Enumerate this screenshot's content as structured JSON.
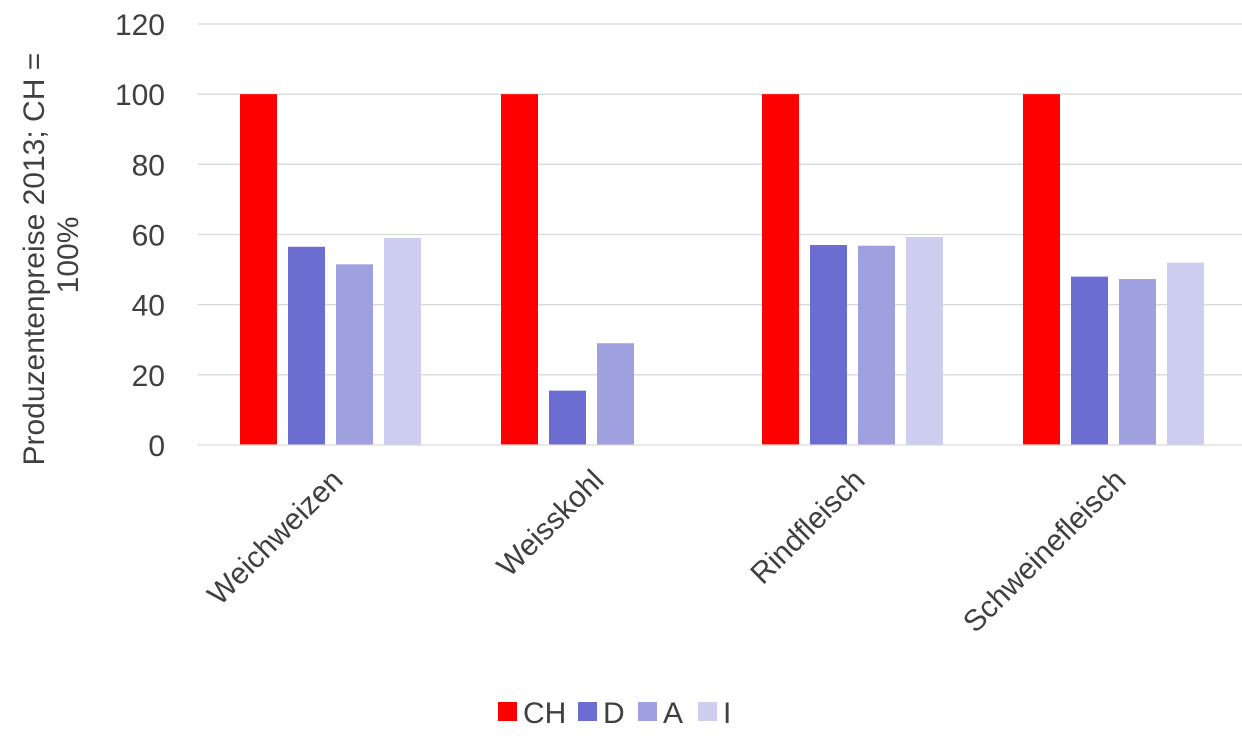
{
  "chart_data": {
    "type": "bar",
    "title": "",
    "xlabel": "",
    "ylabel_line1": "Produzentenpreise 2013; CH =",
    "ylabel_line2": "100%",
    "ylim": [
      0,
      120
    ],
    "yticks": [
      0,
      20,
      40,
      60,
      80,
      100,
      120
    ],
    "grid": true,
    "legend_position": "bottom",
    "categories": [
      "Weichweizen",
      "Weisskohl",
      "Rindfleisch",
      "Schweinefleisch"
    ],
    "series": [
      {
        "name": "CH",
        "color": "#ff0000",
        "values": [
          100,
          100,
          100,
          100
        ]
      },
      {
        "name": "D",
        "color": "#6b6dd0",
        "values": [
          56.5,
          15.5,
          57,
          48
        ]
      },
      {
        "name": "A",
        "color": "#9fa0e0",
        "values": [
          51.5,
          29,
          56.8,
          47.3
        ]
      },
      {
        "name": "I",
        "color": "#cdcef0",
        "values": [
          59,
          null,
          59.3,
          52
        ]
      }
    ]
  }
}
